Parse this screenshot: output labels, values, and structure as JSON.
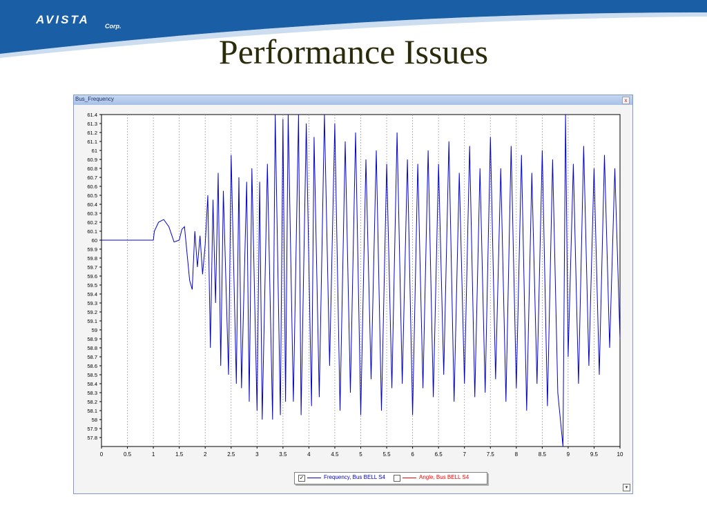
{
  "slide": {
    "title": "Performance Issues",
    "logo_text": "AVISTA",
    "logo_sub": "Corp.",
    "brand_color": "#1a5ea6"
  },
  "window": {
    "title": "Bus_Frequency",
    "close_glyph": "x",
    "scroll_glyph": "▾"
  },
  "legend": {
    "items": [
      {
        "label": "Frequency, Bus BELL S4",
        "color": "#0000cc",
        "checked": true,
        "check_glyph": "✓"
      },
      {
        "label": "Angle, Bus BELL S4",
        "color": "#ff0000",
        "checked": false,
        "check_glyph": ""
      }
    ]
  },
  "chart_data": {
    "type": "line",
    "title": "Bus_Frequency",
    "xlabel": "",
    "ylabel": "",
    "xlim": [
      0,
      10
    ],
    "ylim": [
      57.7,
      61.4
    ],
    "x_ticks": [
      "0",
      "0.5",
      "1",
      "1.5",
      "2",
      "2.5",
      "3",
      "3.5",
      "4",
      "4.5",
      "5",
      "5.5",
      "6",
      "6.5",
      "7",
      "7.5",
      "8",
      "8.5",
      "9",
      "9.5",
      "10"
    ],
    "y_ticks": [
      "61.4",
      "61.3",
      "61.2",
      "61.1",
      "61",
      "60.9",
      "60.8",
      "60.7",
      "60.6",
      "60.5",
      "60.4",
      "60.3",
      "60.2",
      "60.1",
      "60",
      "59.9",
      "59.8",
      "59.7",
      "59.6",
      "59.5",
      "59.4",
      "59.3",
      "59.2",
      "59.1",
      "59",
      "58.9",
      "58.8",
      "58.7",
      "58.6",
      "58.5",
      "58.4",
      "58.3",
      "58.2",
      "58.1",
      "58",
      "57.9",
      "57.8"
    ],
    "grid": {
      "vertical": true,
      "horizontal": false
    },
    "legend_position": "bottom-center",
    "series": [
      {
        "name": "Frequency, Bus BELL S4",
        "color": "#0000cc",
        "x": [
          0,
          1.0,
          1.02,
          1.1,
          1.2,
          1.3,
          1.4,
          1.5,
          1.55,
          1.6,
          1.7,
          1.75,
          1.8,
          1.85,
          1.9,
          1.95,
          2.0,
          2.05,
          2.1,
          2.15,
          2.2,
          2.25,
          2.3,
          2.35,
          2.45,
          2.5,
          2.6,
          2.65,
          2.7,
          2.8,
          2.85,
          2.9,
          3.0,
          3.05,
          3.1,
          3.2,
          3.3,
          3.35,
          3.45,
          3.5,
          3.55,
          3.6,
          3.7,
          3.8,
          3.85,
          3.95,
          4.05,
          4.1,
          4.2,
          4.3,
          4.4,
          4.5,
          4.6,
          4.7,
          4.8,
          4.9,
          5.0,
          5.1,
          5.2,
          5.3,
          5.4,
          5.5,
          5.6,
          5.7,
          5.8,
          5.9,
          6.0,
          6.1,
          6.2,
          6.3,
          6.4,
          6.5,
          6.6,
          6.7,
          6.8,
          6.9,
          7.0,
          7.1,
          7.2,
          7.3,
          7.4,
          7.5,
          7.6,
          7.7,
          7.8,
          7.9,
          8.0,
          8.1,
          8.2,
          8.3,
          8.4,
          8.5,
          8.6,
          8.7,
          8.8,
          8.9,
          8.95,
          9.0,
          9.1,
          9.2,
          9.3,
          9.4,
          9.5,
          9.6,
          9.7,
          9.8,
          9.9,
          10.0
        ],
        "y": [
          60.0,
          60.0,
          60.1,
          60.2,
          60.23,
          60.15,
          59.98,
          60.0,
          60.12,
          60.15,
          59.55,
          59.45,
          60.1,
          59.7,
          60.05,
          59.62,
          59.95,
          60.5,
          58.8,
          60.45,
          59.3,
          60.75,
          58.6,
          60.55,
          58.5,
          60.95,
          58.4,
          60.7,
          58.35,
          60.65,
          58.2,
          60.8,
          58.1,
          60.65,
          58.0,
          60.85,
          58.0,
          61.4,
          58.05,
          61.35,
          58.2,
          61.4,
          58.2,
          61.45,
          58.05,
          61.3,
          58.15,
          61.15,
          58.25,
          61.4,
          58.6,
          61.3,
          58.1,
          61.1,
          58.3,
          61.2,
          58.05,
          60.9,
          58.45,
          61.0,
          58.1,
          60.85,
          58.35,
          61.2,
          58.4,
          60.9,
          58.05,
          60.85,
          58.35,
          61.0,
          58.25,
          60.85,
          58.5,
          61.1,
          58.2,
          60.75,
          58.4,
          61.05,
          58.25,
          60.8,
          58.3,
          61.15,
          58.45,
          60.8,
          58.2,
          61.05,
          58.35,
          60.95,
          58.1,
          60.75,
          58.4,
          61.0,
          58.15,
          60.9,
          58.3,
          57.7,
          61.4,
          58.7,
          60.85,
          58.4,
          61.05,
          58.6,
          60.8,
          58.5,
          60.95,
          58.8,
          60.8,
          58.9
        ]
      },
      {
        "name": "Angle, Bus BELL S4",
        "color": "#ff0000",
        "visible": false,
        "x": [],
        "y": []
      }
    ]
  }
}
